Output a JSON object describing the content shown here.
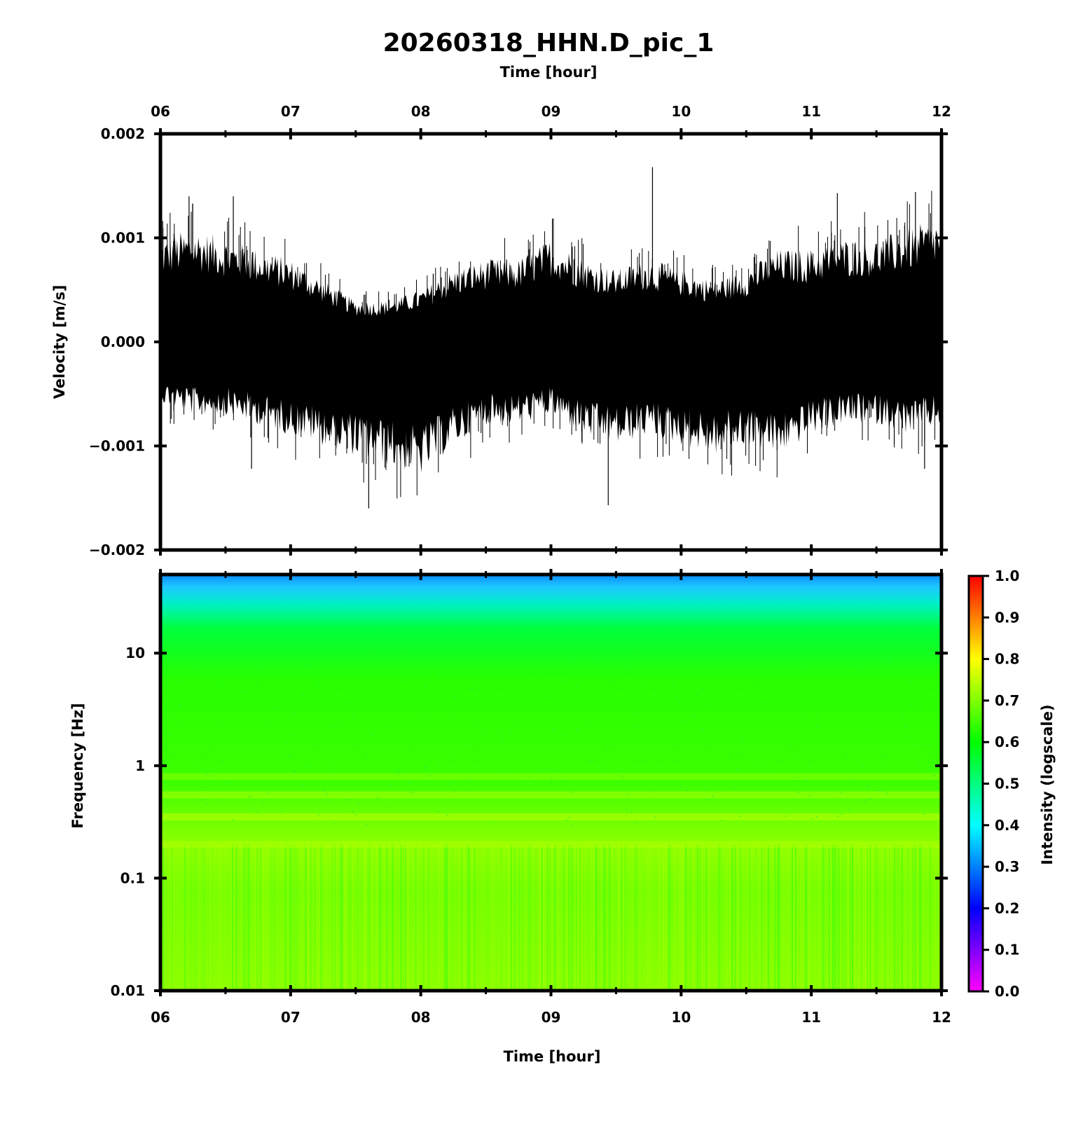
{
  "title": "20260318_HHN.D_pic_1",
  "chart_data": [
    {
      "type": "line",
      "panel": "waveform",
      "title": "20260318_HHN.D_pic_1",
      "xlabel_top": "Time [hour]",
      "ylabel": "Velocity [m/s]",
      "x_ticks": [
        "06",
        "07",
        "08",
        "09",
        "10",
        "11",
        "12"
      ],
      "y_ticks": [
        "0.002",
        "0.001",
        "0.000",
        "−0.001",
        "−0.002"
      ],
      "xlim": [
        6,
        12
      ],
      "ylim": [
        -0.002,
        0.002
      ],
      "grid": false,
      "line_color": "#000000",
      "series": [
        {
          "envelope_x": [
            6.0,
            6.25,
            6.5,
            6.75,
            7.0,
            7.25,
            7.5,
            7.75,
            8.0,
            8.25,
            8.5,
            8.75,
            9.0,
            9.25,
            9.5,
            9.75,
            10.0,
            10.25,
            10.5,
            10.75,
            11.0,
            11.25,
            11.5,
            11.75,
            12.0
          ],
          "upper": [
            0.001,
            0.0011,
            0.001,
            0.0009,
            0.0008,
            0.0006,
            0.0004,
            0.0004,
            0.0005,
            0.0007,
            0.0008,
            0.0008,
            0.001,
            0.0008,
            0.0007,
            0.0008,
            0.0007,
            0.0006,
            0.0007,
            0.0009,
            0.0009,
            0.001,
            0.001,
            0.0011,
            0.0012
          ],
          "lower": [
            -0.0006,
            -0.0007,
            -0.0007,
            -0.0008,
            -0.0009,
            -0.001,
            -0.0011,
            -0.0012,
            -0.0013,
            -0.001,
            -0.0008,
            -0.0008,
            -0.0007,
            -0.0009,
            -0.001,
            -0.0009,
            -0.001,
            -0.0011,
            -0.001,
            -0.0011,
            -0.0009,
            -0.0008,
            -0.0008,
            -0.0009,
            -0.0008
          ],
          "peaks_positive": [
            [
              6.22,
              0.0014
            ],
            [
              6.56,
              0.0014
            ],
            [
              9.78,
              0.00168
            ],
            [
              11.2,
              0.00143
            ],
            [
              11.8,
              0.00144
            ]
          ],
          "peaks_negative": [
            [
              6.7,
              -0.00122
            ],
            [
              7.6,
              -0.0016
            ],
            [
              9.44,
              -0.00157
            ],
            [
              11.87,
              -0.00122
            ]
          ]
        }
      ]
    },
    {
      "type": "heatmap",
      "panel": "spectrogram",
      "xlabel": "Time [hour]",
      "ylabel": "Frequency [Hz]",
      "x_ticks": [
        "06",
        "07",
        "08",
        "09",
        "10",
        "11",
        "12"
      ],
      "y_ticks": [
        "10",
        "1",
        "0.1",
        "0.01"
      ],
      "xlim": [
        6,
        12
      ],
      "ylim": [
        0.01,
        50
      ],
      "yscale": "log",
      "colorbar": {
        "label": "Intensity (logscale)",
        "range": [
          0.0,
          1.0
        ],
        "ticks": [
          "1.0",
          "0.9",
          "0.8",
          "0.7",
          "0.6",
          "0.5",
          "0.4",
          "0.3",
          "0.2",
          "0.1",
          "0.0"
        ],
        "colors": [
          "#ff00ff",
          "#7f00ff",
          "#0000ff",
          "#0080ff",
          "#00ffff",
          "#00ff80",
          "#00ff00",
          "#80ff00",
          "#ffff00",
          "#ff8000",
          "#ff0000"
        ]
      },
      "intensity_profile": {
        "frequency_hz": [
          50,
          35,
          25,
          15,
          10,
          3,
          1,
          0.8,
          0.55,
          0.35,
          0.2,
          0.1,
          0.03,
          0.01
        ],
        "intensity": [
          0.36,
          0.4,
          0.46,
          0.56,
          0.6,
          0.62,
          0.64,
          0.68,
          0.68,
          0.72,
          0.72,
          0.66,
          0.69,
          0.7
        ]
      }
    }
  ]
}
